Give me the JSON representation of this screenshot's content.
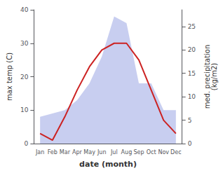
{
  "chart_data": {
    "type": "line",
    "categories": [
      "Jan",
      "Feb",
      "Mar",
      "Apr",
      "May",
      "Jun",
      "Jul",
      "Aug",
      "Sep",
      "Oct",
      "Nov",
      "Dec"
    ],
    "xlabel": "date (month)",
    "ylabel": "max temp (C)",
    "y2label": "med. precipitation\n(kg/m2)",
    "series": [
      {
        "type": "area",
        "color": "#aab4e8",
        "values": [
          8,
          9,
          10,
          13,
          18,
          26,
          38,
          36,
          18,
          18,
          10,
          10
        ]
      },
      {
        "type": "line",
        "color": "#cc2222",
        "values": [
          3,
          1,
          8,
          16,
          23,
          28,
          30,
          30,
          25,
          16,
          7,
          3
        ]
      }
    ],
    "ylim": [
      0,
      40
    ],
    "yticks": [
      0,
      10,
      20,
      30,
      40
    ],
    "y2lim": [
      0,
      28.57
    ],
    "y2ticks": [
      0,
      5,
      10,
      15,
      20,
      25
    ],
    "grid": false
  }
}
